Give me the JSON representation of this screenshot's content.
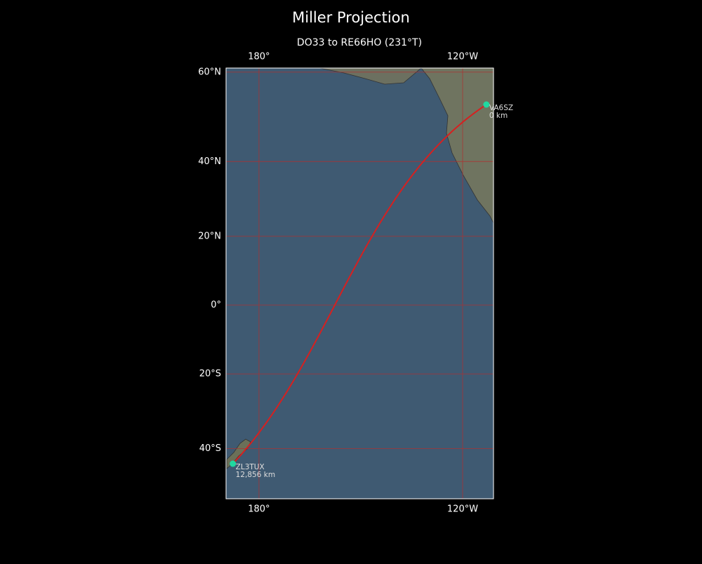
{
  "title": "Miller Projection",
  "subtitle": "DO33 to RE66HO (231°T)",
  "map": {
    "projection": "miller",
    "lon_range": [
      170.3,
      -110.9
    ],
    "lat_range": [
      -51.8,
      60.8
    ],
    "lon_ticks": [
      {
        "value": 180,
        "label": "180°"
      },
      {
        "value": -120,
        "label": "120°W"
      }
    ],
    "lat_ticks": [
      {
        "value": 60,
        "label": "60°N"
      },
      {
        "value": 40,
        "label": "40°N"
      },
      {
        "value": 20,
        "label": "20°N"
      },
      {
        "value": 0,
        "label": "0°"
      },
      {
        "value": -20,
        "label": "20°S"
      },
      {
        "value": -40,
        "label": "40°S"
      }
    ],
    "grid_color": "#b03030",
    "route_color": "#d62020",
    "marker_color": "#20d8a0",
    "stations": [
      {
        "name": "VA6SZ",
        "distance": "0 km",
        "lat": 53.3,
        "lon": -113.0
      },
      {
        "name": "ZL3TUX",
        "distance": "12,856 km",
        "lat": -43.7,
        "lon": 172.3
      }
    ]
  }
}
